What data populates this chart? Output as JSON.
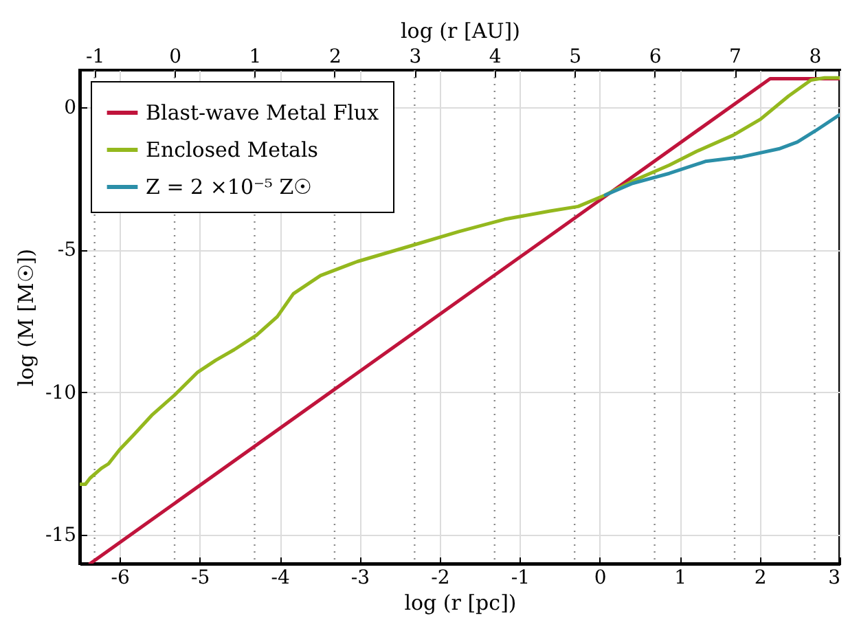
{
  "chart_data": {
    "type": "line",
    "xlabel": "log (r [pc])",
    "ylabel": "log (M [M☉])",
    "x2label": "log (r [AU])",
    "xlim": [
      -6.5,
      3
    ],
    "xticks": [
      -6,
      -5,
      -4,
      -3,
      -2,
      -1,
      0,
      1,
      2,
      3
    ],
    "ylim": [
      -16,
      1.3
    ],
    "yticks": [
      -15,
      -10,
      -5,
      0
    ],
    "x2lim": [
      -1.186,
      8.314
    ],
    "x2ticks": [
      -1,
      0,
      1,
      2,
      3,
      4,
      5,
      6,
      7,
      8
    ],
    "grid": true,
    "legend": "top left",
    "series": [
      {
        "name": "Blast-wave Metal Flux",
        "color": "#c0143c",
        "x": [
          -6.37,
          2.13,
          3
        ],
        "values": [
          -16,
          1,
          1
        ]
      },
      {
        "name": "Enclosed Metals",
        "color": "#94b81e",
        "x": [
          -6.5,
          -6.43,
          -6.37,
          -6.23,
          -6.14,
          -6.0,
          -5.83,
          -5.6,
          -5.31,
          -5.03,
          -4.8,
          -4.57,
          -4.29,
          -4.03,
          -3.83,
          -3.49,
          -3.03,
          -2.35,
          -1.76,
          -1.19,
          -0.62,
          -0.27,
          0.07,
          0.41,
          0.87,
          1.21,
          1.67,
          2.01,
          2.36,
          2.64,
          2.81,
          3.0
        ],
        "values": [
          -13.22,
          -13.22,
          -13.0,
          -12.66,
          -12.5,
          -12.0,
          -11.5,
          -10.8,
          -10.08,
          -9.3,
          -8.87,
          -8.5,
          -7.99,
          -7.34,
          -6.54,
          -5.9,
          -5.41,
          -4.85,
          -4.36,
          -3.93,
          -3.64,
          -3.48,
          -3.08,
          -2.59,
          -2.03,
          -1.55,
          -0.98,
          -0.42,
          0.39,
          0.95,
          1.03,
          1.03
        ]
      },
      {
        "name": "Z = 2 ×10⁻⁵ Z☉",
        "color": "#2b8fa8",
        "x": [
          0.07,
          0.41,
          0.87,
          1.32,
          1.78,
          2.24,
          2.47,
          2.7,
          3.0
        ],
        "values": [
          -3.08,
          -2.67,
          -2.32,
          -1.9,
          -1.74,
          -1.46,
          -1.22,
          -0.82,
          -0.26
        ]
      }
    ]
  }
}
